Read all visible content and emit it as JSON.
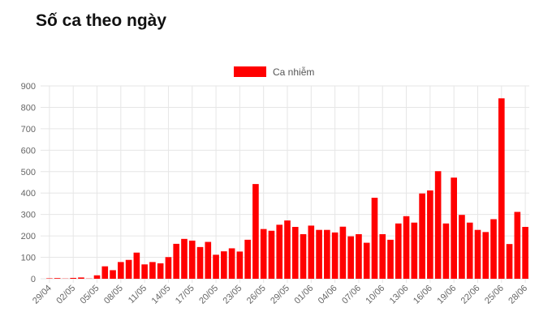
{
  "page": {
    "title": "Số ca theo ngày"
  },
  "chart_data": {
    "type": "bar",
    "title": "",
    "xlabel": "",
    "ylabel": "",
    "ylim": [
      0,
      900
    ],
    "ytick_step": 100,
    "grid": true,
    "legend_position": "top-center",
    "colors": {
      "series": "#ff0000",
      "grid": "#e6e6e6",
      "axis_text": "#666666"
    },
    "series": [
      {
        "name": "Ca nhiễm",
        "values": [
          2,
          3,
          1,
          4,
          6,
          1,
          16,
          58,
          40,
          78,
          88,
          122,
          67,
          78,
          72,
          101,
          163,
          186,
          178,
          148,
          172,
          112,
          128,
          142,
          127,
          182,
          442,
          232,
          224,
          252,
          272,
          242,
          208,
          248,
          228,
          228,
          216,
          243,
          198,
          208,
          168,
          378,
          208,
          182,
          258,
          292,
          262,
          398,
          412,
          502,
          258,
          472,
          298,
          262,
          228,
          218,
          278,
          842,
          162,
          312,
          242
        ]
      }
    ],
    "categories": [
      "29/04",
      "30/04",
      "01/05",
      "02/05",
      "03/05",
      "04/05",
      "05/05",
      "06/05",
      "07/05",
      "08/05",
      "09/05",
      "10/05",
      "11/05",
      "12/05",
      "13/05",
      "14/05",
      "15/05",
      "16/05",
      "17/05",
      "18/05",
      "19/05",
      "20/05",
      "21/05",
      "22/05",
      "23/05",
      "24/05",
      "25/05",
      "26/05",
      "27/05",
      "28/05",
      "29/05",
      "30/05",
      "31/05",
      "01/06",
      "02/06",
      "03/06",
      "04/06",
      "05/06",
      "06/06",
      "07/06",
      "08/06",
      "09/06",
      "10/06",
      "11/06",
      "12/06",
      "13/06",
      "14/06",
      "15/06",
      "16/06",
      "17/06",
      "18/06",
      "19/06",
      "20/06",
      "21/06",
      "22/06",
      "23/06",
      "24/06",
      "25/06",
      "26/06",
      "27/06",
      "28/06"
    ],
    "tick_labels": [
      "29/04",
      "02/05",
      "05/05",
      "08/05",
      "11/05",
      "14/05",
      "17/05",
      "20/05",
      "23/05",
      "26/05",
      "29/05",
      "01/06",
      "04/06",
      "07/06",
      "10/06",
      "13/06",
      "16/06",
      "19/06",
      "22/06",
      "25/06",
      "28/06"
    ],
    "y_tick_labels": [
      "0",
      "100",
      "200",
      "300",
      "400",
      "500",
      "600",
      "700",
      "800",
      "900"
    ]
  }
}
